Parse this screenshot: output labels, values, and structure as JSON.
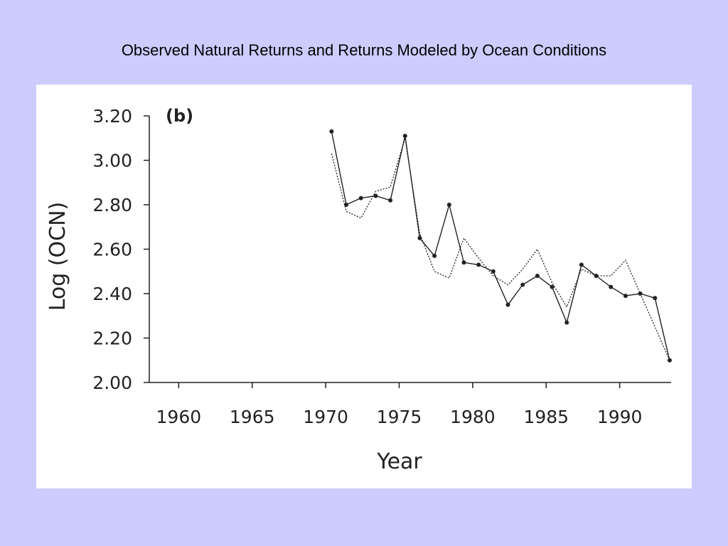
{
  "slide": {
    "title": "Observed Natural Returns and Returns Modeled by Ocean Conditions"
  },
  "colors": {
    "background": "#ccccff",
    "panel": "#ffffff",
    "line": "#222222"
  },
  "chart_data": {
    "type": "line",
    "panel_label": "(b)",
    "xlabel": "Year",
    "ylabel": "Log (OCN)",
    "xlim": [
      1958,
      1993.5
    ],
    "ylim": [
      2.0,
      3.2
    ],
    "xticks": [
      "1960",
      "1965",
      "1970",
      "1975",
      "1980",
      "1985",
      "1990"
    ],
    "yticks": [
      "2.00",
      "2.20",
      "2.40",
      "2.60",
      "2.80",
      "3.00",
      "3.20"
    ],
    "grid": false,
    "legend": "none",
    "series": [
      {
        "style": "solid",
        "markers": true,
        "x": [
          1970.4,
          1971.4,
          1972.4,
          1973.4,
          1974.4,
          1975.4,
          1976.4,
          1977.4,
          1978.4,
          1979.4,
          1980.4,
          1981.4,
          1982.4,
          1983.4,
          1984.4,
          1985.4,
          1986.4,
          1987.4,
          1988.4,
          1989.4,
          1990.4,
          1991.4,
          1992.4,
          1993.4
        ],
        "y": [
          3.13,
          2.8,
          2.83,
          2.84,
          2.82,
          3.11,
          2.65,
          2.57,
          2.8,
          2.54,
          2.53,
          2.5,
          2.35,
          2.44,
          2.48,
          2.43,
          2.27,
          2.53,
          2.48,
          2.43,
          2.39,
          2.4,
          2.38,
          2.1
        ]
      },
      {
        "style": "dotted",
        "markers": false,
        "x": [
          1970.4,
          1971.4,
          1972.4,
          1973.4,
          1974.4,
          1975.4,
          1976.4,
          1977.4,
          1978.4,
          1979.4,
          1980.4,
          1981.4,
          1982.4,
          1983.4,
          1984.4,
          1985.4,
          1986.4,
          1987.4,
          1988.4,
          1989.4,
          1990.4,
          1991.4,
          1992.4,
          1993.4
        ],
        "y": [
          3.03,
          2.77,
          2.74,
          2.86,
          2.88,
          3.1,
          2.67,
          2.5,
          2.47,
          2.65,
          2.56,
          2.48,
          2.44,
          2.51,
          2.6,
          2.45,
          2.34,
          2.51,
          2.48,
          2.48,
          2.55,
          2.4,
          2.25,
          2.1
        ]
      }
    ]
  }
}
